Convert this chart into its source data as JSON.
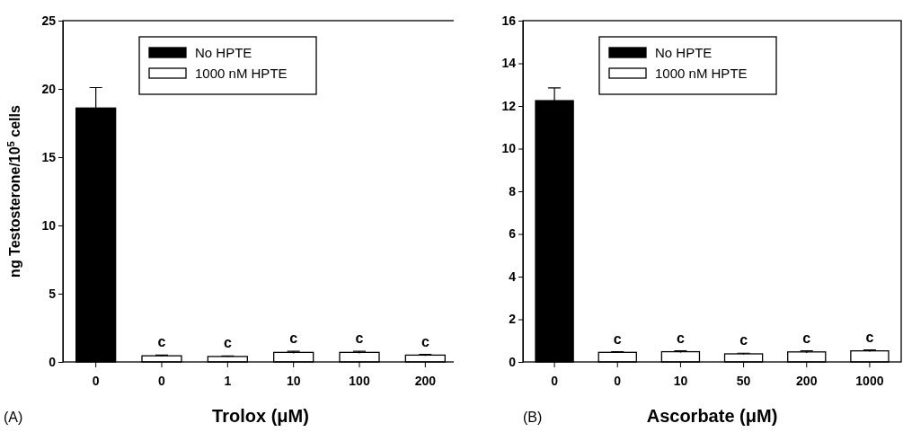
{
  "chart_data": [
    {
      "type": "bar",
      "categories": [
        "0",
        "0",
        "1",
        "10",
        "100",
        "200"
      ],
      "xlabel": "Trolox (μM)",
      "ylabel": "ng Testosterone/10$^{5}$ cells",
      "ylim": [
        0,
        25
      ],
      "yticks": [
        0,
        5,
        10,
        15,
        20,
        25
      ],
      "legend": "top",
      "annotations": [
        "(A)"
      ],
      "series": [
        {
          "name": "No HPTE",
          "color": "#000000",
          "values": [
            18.6,
            null,
            null,
            null,
            null,
            null
          ],
          "errors": [
            1.5,
            null,
            null,
            null,
            null,
            null
          ]
        },
        {
          "name": "1000 nM HPTE",
          "color": "#ffffff",
          "values": [
            null,
            0.45,
            0.4,
            0.7,
            0.7,
            0.5
          ],
          "errors": [
            null,
            0.05,
            0.03,
            0.08,
            0.08,
            0.05
          ],
          "value_labels": [
            null,
            "c",
            "c",
            "c",
            "c",
            "c"
          ]
        }
      ]
    },
    {
      "type": "bar",
      "categories": [
        "0",
        "0",
        "10",
        "50",
        "200",
        "1000"
      ],
      "xlabel": "Ascorbate (μM)",
      "ylim": [
        0,
        16
      ],
      "yticks": [
        0,
        2,
        4,
        6,
        8,
        10,
        12,
        14,
        16
      ],
      "legend": "top",
      "annotations": [
        "(B)"
      ],
      "series": [
        {
          "name": "No HPTE",
          "color": "#000000",
          "values": [
            12.25,
            null,
            null,
            null,
            null,
            null
          ],
          "errors": [
            0.6,
            null,
            null,
            null,
            null,
            null
          ]
        },
        {
          "name": "1000 nM HPTE",
          "color": "#ffffff",
          "values": [
            null,
            0.45,
            0.48,
            0.38,
            0.47,
            0.52
          ],
          "errors": [
            null,
            0.03,
            0.04,
            0.03,
            0.05,
            0.04
          ],
          "value_labels": [
            null,
            "c",
            "c",
            "c",
            "c",
            "c"
          ]
        }
      ]
    }
  ]
}
